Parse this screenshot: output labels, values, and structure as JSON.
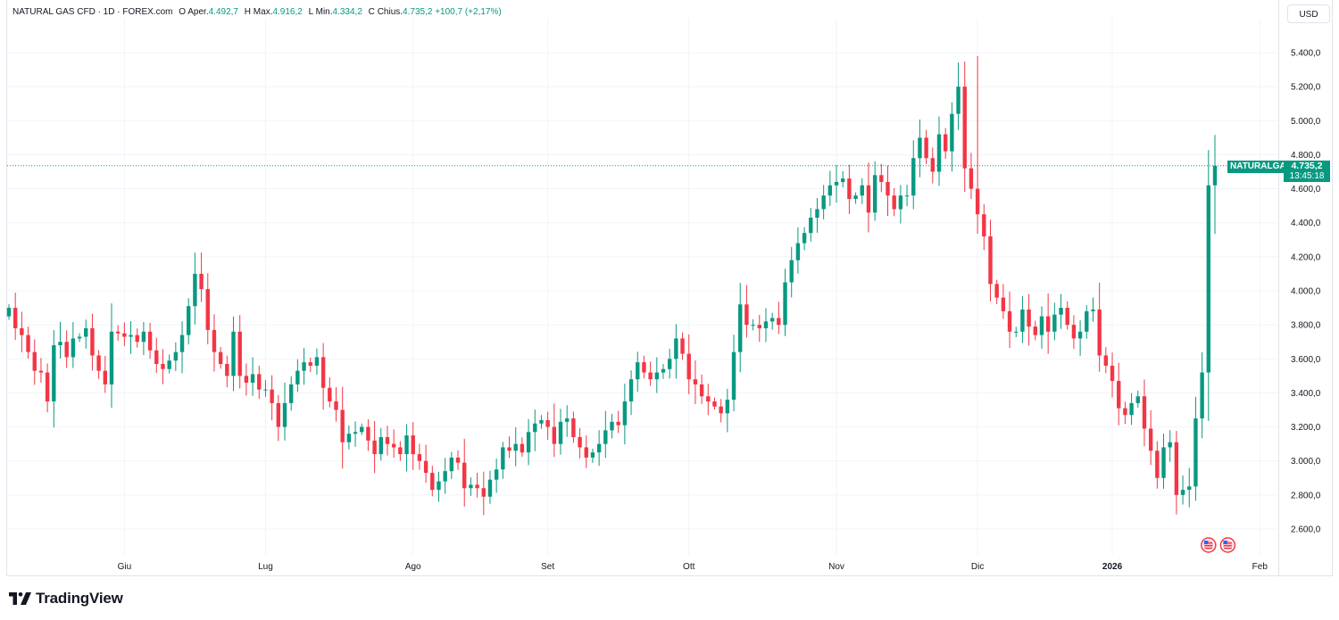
{
  "legend": {
    "symbol": "NATURAL GAS CFD · 1D · FOREX.com",
    "open_label": "O",
    "open_text": "Aper.",
    "open_value": "4.492,7",
    "high_label": "H",
    "high_text": "Max.",
    "high_value": "4.916,2",
    "low_label": "L",
    "low_text": "Min.",
    "low_value": "4.334,2",
    "close_label": "C",
    "close_text": "Chius.",
    "close_value": "4.735,2",
    "change": "+100,7 (+2,17%)"
  },
  "currency": "USD",
  "brand": "TradingView",
  "price_tag": {
    "symbol": "NATURALGAS",
    "price": "4.735,2",
    "countdown": "13:45:18"
  },
  "colors": {
    "up": "#089981",
    "down": "#f23645",
    "grid": "#f0f3fa",
    "text": "#131722"
  },
  "chart_data": {
    "type": "candlestick",
    "title": "NATURAL GAS CFD · 1D · FOREX.com",
    "ylim": [
      2500,
      5500
    ],
    "ylabel": "USD",
    "y_ticks": [
      2600,
      2800,
      3000,
      3200,
      3400,
      3600,
      3800,
      4000,
      4200,
      4400,
      4600,
      4800,
      5000,
      5200,
      5400
    ],
    "y_tick_labels": [
      "2.600,0",
      "2.800,0",
      "3.000,0",
      "3.200,0",
      "3.400,0",
      "3.600,0",
      "3.800,0",
      "4.000,0",
      "4.200,0",
      "4.400,0",
      "4.600,0",
      "4.800,0",
      "5.000,0",
      "5.200,0",
      "5.400,0"
    ],
    "x_labels": [
      {
        "label": "Giu",
        "index": 18
      },
      {
        "label": "Lug",
        "index": 40
      },
      {
        "label": "Ago",
        "index": 63
      },
      {
        "label": "Set",
        "index": 84
      },
      {
        "label": "Ott",
        "index": 106
      },
      {
        "label": "Nov",
        "index": 129
      },
      {
        "label": "Dic",
        "index": 151
      },
      {
        "label": "2026",
        "index": 172
      },
      {
        "label": "Feb",
        "index": 195
      }
    ],
    "last_price": 4735.2,
    "events": [
      {
        "index": 187,
        "label": "US"
      },
      {
        "index": 190,
        "label": "US"
      }
    ],
    "closes": [
      3900,
      3780,
      3740,
      3640,
      3530,
      3520,
      3350,
      3680,
      3700,
      3610,
      3720,
      3730,
      3780,
      3620,
      3530,
      3450,
      3760,
      3750,
      3730,
      3740,
      3700,
      3760,
      3650,
      3570,
      3540,
      3590,
      3640,
      3740,
      3910,
      4100,
      4010,
      3770,
      3640,
      3570,
      3500,
      3760,
      3500,
      3460,
      3510,
      3420,
      3420,
      3340,
      3200,
      3340,
      3450,
      3530,
      3580,
      3560,
      3610,
      3430,
      3350,
      3300,
      3110,
      3160,
      3170,
      3200,
      3120,
      3040,
      3140,
      3100,
      3080,
      3040,
      3150,
      3040,
      3000,
      2930,
      2830,
      2880,
      2940,
      3020,
      2990,
      2840,
      2860,
      2840,
      2790,
      2890,
      2950,
      3080,
      3060,
      3100,
      3050,
      3170,
      3220,
      3240,
      3200,
      3100,
      3230,
      3250,
      3140,
      3080,
      3020,
      3050,
      3100,
      3180,
      3230,
      3210,
      3350,
      3480,
      3580,
      3520,
      3480,
      3520,
      3540,
      3600,
      3720,
      3630,
      3480,
      3450,
      3380,
      3350,
      3320,
      3280,
      3360,
      3640,
      3920,
      3800,
      3800,
      3780,
      3820,
      3840,
      3800,
      4050,
      4180,
      4280,
      4340,
      4430,
      4480,
      4560,
      4620,
      4640,
      4660,
      4540,
      4560,
      4620,
      4460,
      4680,
      4640,
      4560,
      4480,
      4560,
      4560,
      4780,
      4900,
      4780,
      4700,
      4920,
      4820,
      5040,
      5200,
      4720,
      4600,
      4450,
      4320,
      4040,
      3960,
      3880,
      3760,
      3760,
      3890,
      3790,
      3740,
      3850,
      3760,
      3860,
      3900,
      3800,
      3720,
      3760,
      3880,
      3890,
      3620,
      3560,
      3470,
      3310,
      3270,
      3340,
      3380,
      3190,
      3060,
      2900,
      3080,
      3110,
      2800,
      2830,
      2850,
      3250,
      3520,
      4620,
      4735
    ]
  }
}
